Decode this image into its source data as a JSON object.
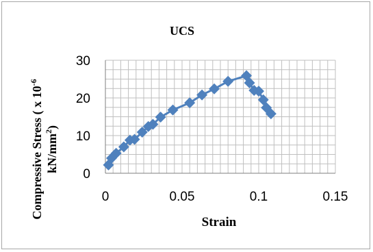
{
  "chart_data": {
    "type": "line",
    "title": "UCS",
    "xlabel": "Strain",
    "ylabel_line1": "Compressive Stress ( x 10",
    "ylabel_sup": "-6",
    "ylabel_line2": "kN/mm",
    "ylabel_sup2": "2",
    "ylabel_close": ")",
    "xlim": [
      0,
      0.15
    ],
    "ylim": [
      0,
      30
    ],
    "x_ticks": [
      0,
      0.05,
      0.1,
      0.15
    ],
    "x_tick_labels": [
      "0",
      "0.05",
      "0.1",
      "0.15"
    ],
    "y_ticks": [
      0,
      10,
      20,
      30
    ],
    "y_tick_labels": [
      "0",
      "10",
      "20",
      "30"
    ],
    "minor_grid_x_step": 0.005,
    "minor_grid_y_step": 2.5,
    "grid": true,
    "legend": "none",
    "marker": "diamond",
    "series": [
      {
        "color": "#4f81bd",
        "x": [
          0.002,
          0.004,
          0.007,
          0.012,
          0.016,
          0.019,
          0.024,
          0.028,
          0.031,
          0.036,
          0.044,
          0.055,
          0.063,
          0.071,
          0.08,
          0.092,
          0.094,
          0.097,
          0.1,
          0.103,
          0.105,
          0.108
        ],
        "y": [
          2.2,
          4.0,
          5.3,
          7.0,
          8.8,
          9.0,
          10.9,
          12.4,
          13.0,
          14.9,
          16.8,
          18.7,
          20.8,
          22.4,
          24.4,
          25.9,
          24.0,
          22.0,
          21.8,
          19.5,
          17.4,
          15.8
        ]
      }
    ]
  }
}
